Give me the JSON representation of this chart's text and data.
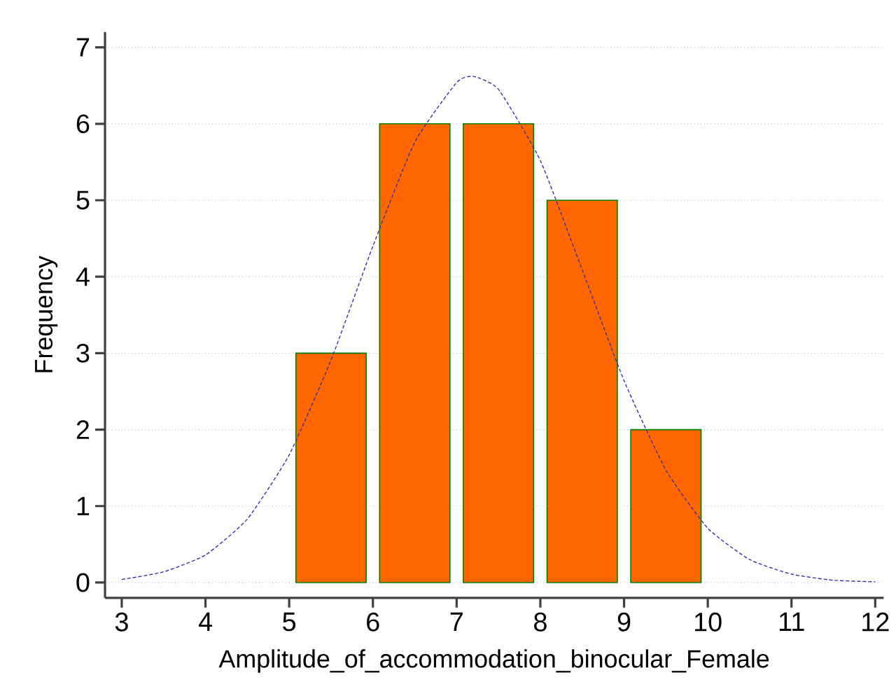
{
  "chart_data": {
    "type": "histogram",
    "xlabel": "Amplitude_of_accommodation_binocular_Female",
    "ylabel": "Frequency",
    "series": [
      {
        "bins": [
          5,
          6,
          7,
          8,
          9,
          10
        ],
        "values": [
          3,
          6,
          6,
          5,
          2
        ],
        "color": "#ff6600"
      },
      {
        "type": "line",
        "color": "#3333aa",
        "line_style": "dashed",
        "x": [
          3,
          3.5,
          4,
          4.5,
          5,
          5.5,
          6,
          6.5,
          7,
          7.2,
          7.5,
          8,
          8.5,
          9,
          9.5,
          10,
          10.5,
          11,
          11.5,
          12
        ],
        "values": [
          0.04,
          0.14,
          0.36,
          0.83,
          1.67,
          2.91,
          4.4,
          5.76,
          6.54,
          6.62,
          6.45,
          5.52,
          4.09,
          2.64,
          1.47,
          0.71,
          0.3,
          0.11,
          0.03,
          0.01
        ]
      }
    ],
    "xlim": [
      2.8,
      12.1
    ],
    "ylim": [
      -0.2,
      7.2
    ],
    "xticks": [
      3,
      4,
      5,
      6,
      7,
      8,
      9,
      10,
      11,
      12
    ],
    "yticks": [
      0,
      1,
      2,
      3,
      4,
      5,
      6,
      7
    ],
    "grid": "y"
  }
}
